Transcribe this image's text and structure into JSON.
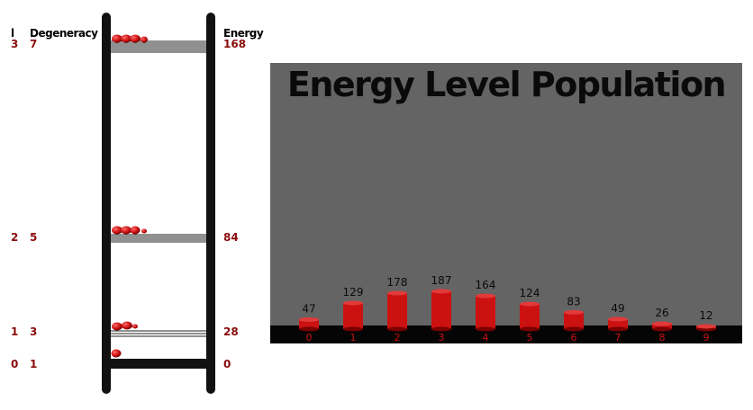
{
  "ladder": {
    "headers": {
      "l": "l",
      "degeneracy": "Degeneracy",
      "energy": "Energy"
    },
    "levels": [
      {
        "l": "3",
        "degeneracy": "7",
        "energy": "168"
      },
      {
        "l": "2",
        "degeneracy": "5",
        "energy": "84"
      },
      {
        "l": "1",
        "degeneracy": "3",
        "energy": "28"
      },
      {
        "l": "0",
        "degeneracy": "1",
        "energy": "0"
      }
    ]
  },
  "chart_data": {
    "type": "bar",
    "title": "Energy Level Population",
    "categories": [
      "0",
      "1",
      "2",
      "3",
      "4",
      "5",
      "6",
      "7",
      "8",
      "9"
    ],
    "values": [
      47,
      129,
      178,
      187,
      164,
      124,
      83,
      49,
      26,
      12
    ],
    "ylim": [
      0,
      187
    ],
    "colors": {
      "bar": "#cc1111",
      "panel": "#646464",
      "floor": "#050505",
      "category_label": "#cc1111"
    }
  }
}
